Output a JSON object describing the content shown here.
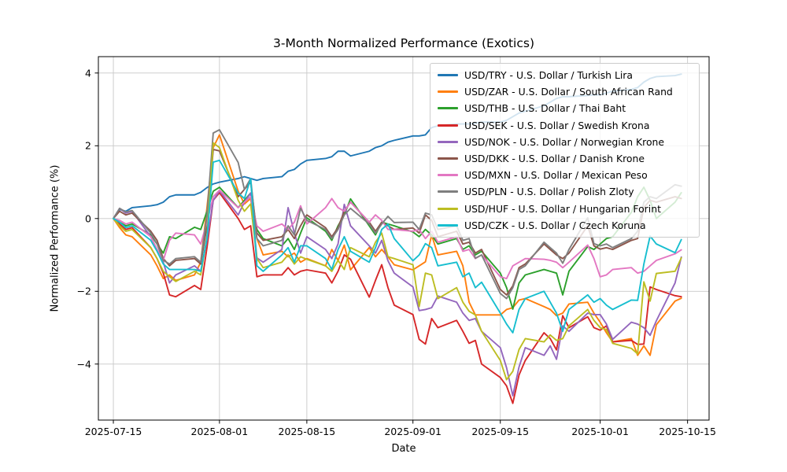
{
  "chart_data": {
    "type": "line",
    "title": "3-Month Normalized Performance (Exotics)",
    "xlabel": "Date",
    "ylabel": "Normalized Performance (%)",
    "grid": true,
    "legend_position": "upper right",
    "background_color": "#ffffff",
    "grid_color": "#c8c8c8",
    "spine_color": "#000000",
    "x_tick_labels": [
      "2025-07-15",
      "2025-08-01",
      "2025-08-15",
      "2025-09-01",
      "2025-09-15",
      "2025-10-01",
      "2025-10-15"
    ],
    "x_ticks_days": [
      0,
      17,
      31,
      48,
      62,
      78,
      92
    ],
    "y_ticks": [
      4,
      2,
      0,
      -2,
      -4
    ],
    "y_tick_labels": [
      "4",
      "2",
      "0",
      "−2",
      "−4"
    ],
    "xlim_days": [
      -2.4,
      95.45
    ],
    "ylim": [
      -5.54,
      4.45
    ],
    "dates": [
      "2025-07-15",
      "2025-07-16",
      "2025-07-17",
      "2025-07-18",
      "2025-07-21",
      "2025-07-22",
      "2025-07-23",
      "2025-07-24",
      "2025-07-25",
      "2025-07-28",
      "2025-07-29",
      "2025-07-30",
      "2025-07-31",
      "2025-08-01",
      "2025-08-04",
      "2025-08-05",
      "2025-08-06",
      "2025-08-07",
      "2025-08-08",
      "2025-08-11",
      "2025-08-12",
      "2025-08-13",
      "2025-08-14",
      "2025-08-15",
      "2025-08-18",
      "2025-08-19",
      "2025-08-20",
      "2025-08-21",
      "2025-08-22",
      "2025-08-25",
      "2025-08-26",
      "2025-08-27",
      "2025-08-28",
      "2025-08-29",
      "2025-09-01",
      "2025-09-02",
      "2025-09-03",
      "2025-09-04",
      "2025-09-05",
      "2025-09-08",
      "2025-09-09",
      "2025-09-10",
      "2025-09-11",
      "2025-09-12",
      "2025-09-15",
      "2025-09-16",
      "2025-09-17",
      "2025-09-18",
      "2025-09-19",
      "2025-09-22",
      "2025-09-23",
      "2025-09-24",
      "2025-09-25",
      "2025-09-26",
      "2025-09-29",
      "2025-09-30",
      "2025-10-01",
      "2025-10-02",
      "2025-10-03",
      "2025-10-06",
      "2025-10-07",
      "2025-10-08",
      "2025-10-09",
      "2025-10-10",
      "2025-10-13",
      "2025-10-14"
    ],
    "days": [
      0,
      1,
      2,
      3,
      6,
      7,
      8,
      9,
      10,
      13,
      14,
      15,
      16,
      17,
      20,
      21,
      22,
      23,
      24,
      27,
      28,
      29,
      30,
      31,
      34,
      35,
      36,
      37,
      38,
      41,
      42,
      43,
      44,
      45,
      48,
      49,
      50,
      51,
      52,
      55,
      56,
      57,
      58,
      59,
      62,
      63,
      64,
      65,
      66,
      69,
      70,
      71,
      72,
      73,
      76,
      77,
      78,
      79,
      80,
      83,
      84,
      85,
      86,
      87,
      90,
      91
    ],
    "series": [
      {
        "name": "USD/TRY - U.S. Dollar / Turkish Lira",
        "color": "#1f77b4",
        "values": [
          0,
          0.25,
          0.2,
          0.3,
          0.35,
          0.38,
          0.45,
          0.6,
          0.65,
          0.65,
          0.72,
          0.85,
          0.95,
          1.0,
          1.1,
          1.15,
          1.1,
          1.05,
          1.1,
          1.15,
          1.3,
          1.35,
          1.5,
          1.6,
          1.65,
          1.7,
          1.85,
          1.85,
          1.72,
          1.85,
          1.95,
          2.0,
          2.1,
          2.15,
          2.27,
          2.27,
          2.3,
          2.5,
          2.55,
          2.6,
          2.6,
          2.6,
          2.62,
          2.65,
          2.65,
          2.7,
          2.8,
          2.9,
          2.95,
          3.1,
          3.2,
          3.3,
          3.35,
          3.35,
          3.38,
          3.4,
          3.4,
          3.45,
          3.5,
          3.55,
          3.6,
          3.75,
          3.85,
          3.9,
          3.93,
          3.97
        ]
      },
      {
        "name": "USD/ZAR - U.S. Dollar / South African Rand",
        "color": "#ff7f0e",
        "values": [
          0,
          -0.25,
          -0.45,
          -0.5,
          -1.0,
          -1.3,
          -1.65,
          -1.55,
          -1.7,
          -1.55,
          -1.2,
          0.3,
          1.95,
          2.3,
          0.75,
          0.4,
          0.55,
          -0.55,
          -1.0,
          -0.9,
          -1.05,
          -0.95,
          -1.2,
          -1.1,
          -1.3,
          -0.85,
          -1.15,
          -0.73,
          -1.41,
          -0.8,
          -1.05,
          -0.85,
          -1.05,
          -1.27,
          -1.41,
          -1.3,
          -1.19,
          -0.45,
          -1.0,
          -0.9,
          -1.3,
          -2.3,
          -2.65,
          -2.65,
          -2.65,
          -2.5,
          -2.45,
          -2.24,
          -2.2,
          -2.42,
          -2.5,
          -2.67,
          -2.6,
          -2.35,
          -2.3,
          -2.6,
          -2.85,
          -3.14,
          -3.39,
          -3.3,
          -3.76,
          -3.5,
          -3.76,
          -2.92,
          -2.27,
          -2.19
        ]
      },
      {
        "name": "USD/THB - U.S. Dollar / Thai Baht",
        "color": "#2ca02c",
        "values": [
          0,
          -0.1,
          -0.2,
          -0.15,
          -0.45,
          -0.7,
          -0.95,
          -0.5,
          -0.55,
          -0.24,
          -0.3,
          0.2,
          0.75,
          0.86,
          0.3,
          0.5,
          0.7,
          -0.3,
          -0.55,
          -0.75,
          -0.55,
          -0.85,
          -0.4,
          0.02,
          -0.35,
          -0.6,
          -0.2,
          0.1,
          0.54,
          -0.2,
          -0.45,
          -0.1,
          -0.15,
          -0.2,
          -0.37,
          -0.5,
          -0.3,
          -0.45,
          -0.7,
          -0.55,
          -0.85,
          -0.75,
          -1.0,
          -0.9,
          -1.5,
          -1.9,
          -2.49,
          -1.77,
          -1.55,
          -1.4,
          -1.45,
          -1.5,
          -2.1,
          -1.45,
          -0.77,
          -0.85,
          -0.7,
          -0.55,
          -0.5,
          0.17,
          0.6,
          0.86,
          0.5,
          0.0,
          0.45,
          0.71
        ]
      },
      {
        "name": "USD/SEK - U.S. Dollar / Swedish Krona",
        "color": "#d62728",
        "values": [
          0,
          -0.15,
          -0.3,
          -0.25,
          -0.8,
          -1.1,
          -1.5,
          -2.1,
          -2.15,
          -1.84,
          -1.95,
          -0.8,
          0.5,
          0.71,
          0.0,
          -0.3,
          -0.2,
          -1.6,
          -1.55,
          -1.55,
          -1.35,
          -1.55,
          -1.45,
          -1.41,
          -1.5,
          -1.77,
          -1.45,
          -1.0,
          -1.12,
          -2.16,
          -1.7,
          -1.27,
          -1.9,
          -2.38,
          -2.64,
          -3.32,
          -3.45,
          -2.75,
          -3.0,
          -2.8,
          -3.1,
          -3.43,
          -3.35,
          -4.0,
          -4.37,
          -4.6,
          -5.08,
          -4.3,
          -3.9,
          -3.14,
          -3.3,
          -3.61,
          -2.67,
          -3.0,
          -2.7,
          -3.0,
          -3.07,
          -2.95,
          -3.39,
          -3.35,
          -3.46,
          -3.45,
          -1.88,
          -1.95,
          -2.12,
          -2.15
        ]
      },
      {
        "name": "USD/NOK - U.S. Dollar / Norwegian Krone",
        "color": "#9467bd",
        "values": [
          0,
          0.28,
          0.15,
          0.2,
          -0.5,
          -0.85,
          -1.2,
          -1.77,
          -1.55,
          -1.3,
          -1.45,
          -0.6,
          0.5,
          0.76,
          0.1,
          0.45,
          0.7,
          -1.08,
          -1.2,
          -0.85,
          0.3,
          -0.4,
          -0.95,
          -0.5,
          -0.85,
          -1.1,
          -0.7,
          0.39,
          -0.2,
          -0.75,
          -0.95,
          -0.6,
          -1.16,
          -1.5,
          -1.88,
          -2.53,
          -2.5,
          -2.45,
          -2.13,
          -2.3,
          -2.6,
          -2.8,
          -2.75,
          -3.1,
          -3.55,
          -4.1,
          -4.87,
          -4.08,
          -3.55,
          -3.76,
          -3.5,
          -3.87,
          -2.95,
          -3.1,
          -2.6,
          -2.64,
          -2.64,
          -2.9,
          -3.32,
          -2.85,
          -2.9,
          -3.0,
          -3.21,
          -2.81,
          -1.77,
          -1.06
        ]
      },
      {
        "name": "USD/DKK - U.S. Dollar / Danish Krone",
        "color": "#8c564b",
        "values": [
          0,
          0.2,
          0.1,
          0.15,
          -0.35,
          -0.6,
          -1.1,
          -1.3,
          -1.15,
          -1.1,
          -1.25,
          -0.2,
          1.9,
          1.86,
          0.6,
          0.8,
          1.0,
          -0.4,
          -0.6,
          -0.5,
          -0.3,
          -0.55,
          -0.2,
          0.1,
          -0.25,
          -0.5,
          -0.25,
          0.2,
          0.45,
          -0.1,
          -0.35,
          -0.1,
          -0.2,
          -0.3,
          -0.26,
          -0.4,
          0.1,
          -0.05,
          -0.5,
          -0.35,
          -0.7,
          -0.65,
          -0.95,
          -0.85,
          -1.95,
          -2.1,
          -1.85,
          -1.35,
          -1.25,
          -0.7,
          -0.85,
          -1.0,
          -1.1,
          -0.95,
          -0.2,
          -0.75,
          -0.84,
          -0.8,
          -0.85,
          -0.6,
          -0.55,
          0.3,
          0.5,
          0.45,
          0.6,
          0.55
        ]
      },
      {
        "name": "USD/MXN - U.S. Dollar / Mexican Peso",
        "color": "#e377c2",
        "values": [
          0,
          -0.05,
          -0.15,
          -0.1,
          -0.5,
          -0.85,
          -1.15,
          -0.6,
          -0.4,
          -0.45,
          -0.7,
          -0.1,
          0.6,
          0.78,
          0.3,
          0.45,
          0.6,
          -0.2,
          -0.35,
          -0.15,
          -0.3,
          -0.1,
          0.35,
          -0.15,
          0.3,
          0.55,
          0.3,
          0.2,
          0.45,
          -0.1,
          0.1,
          -0.05,
          -0.3,
          -0.3,
          -0.35,
          -0.3,
          -0.55,
          -0.35,
          -0.65,
          -0.5,
          -0.9,
          -0.85,
          -1.1,
          -1.0,
          -1.6,
          -1.65,
          -1.3,
          -1.2,
          -1.1,
          -1.12,
          -1.15,
          -1.2,
          -1.35,
          -1.2,
          -0.73,
          -1.1,
          -1.6,
          -1.55,
          -1.4,
          -1.35,
          -1.5,
          -1.45,
          -1.3,
          -1.15,
          -0.97,
          -0.86
        ]
      },
      {
        "name": "USD/PLN - U.S. Dollar / Polish Zloty",
        "color": "#7f7f7f",
        "values": [
          0,
          0.28,
          0.18,
          0.22,
          -0.4,
          -0.7,
          -1.15,
          -1.25,
          -1.1,
          -1.05,
          -1.2,
          0.1,
          2.35,
          2.44,
          1.54,
          0.8,
          1.1,
          -0.55,
          -0.75,
          -0.6,
          -0.2,
          -0.45,
          0.28,
          -0.05,
          -0.3,
          -0.55,
          -0.3,
          0.1,
          0.28,
          -0.15,
          -0.4,
          -0.15,
          0.06,
          -0.11,
          -0.1,
          -0.3,
          0.15,
          0.1,
          -0.3,
          -0.2,
          -0.6,
          -0.55,
          -1.09,
          -1.0,
          -2.06,
          -2.2,
          -1.9,
          -1.4,
          -1.3,
          -0.65,
          -0.8,
          -0.95,
          -1.23,
          -0.85,
          0.02,
          -0.69,
          -0.75,
          -0.7,
          -0.8,
          -0.55,
          -0.35,
          0.45,
          0.6,
          0.55,
          0.93,
          0.89
        ]
      },
      {
        "name": "USD/HUF - U.S. Dollar / Hungarian Forint",
        "color": "#bcbd22",
        "values": [
          0,
          -0.2,
          -0.35,
          -0.3,
          -0.8,
          -1.1,
          -1.45,
          -1.6,
          -1.73,
          -1.45,
          -1.55,
          -0.5,
          2.08,
          1.95,
          0.5,
          0.2,
          0.4,
          -1.1,
          -1.35,
          -1.2,
          -1.0,
          -1.25,
          -1.05,
          -1.12,
          -1.3,
          -1.45,
          -1.15,
          -1.4,
          -0.8,
          -1.05,
          -0.65,
          -0.4,
          -1.05,
          -1.1,
          -1.27,
          -2.42,
          -1.5,
          -1.55,
          -2.2,
          -1.9,
          -2.3,
          -2.55,
          -2.65,
          -3.1,
          -3.9,
          -4.43,
          -4.2,
          -3.6,
          -3.3,
          -3.39,
          -3.2,
          -3.35,
          -3.3,
          -2.95,
          -2.5,
          -2.8,
          -3.0,
          -3.05,
          -3.43,
          -3.57,
          -3.72,
          -1.74,
          -2.27,
          -1.51,
          -1.45,
          -1.08
        ]
      },
      {
        "name": "USD/CZK - U.S. Dollar / Czech Koruna",
        "color": "#17becf",
        "values": [
          0,
          -0.1,
          -0.25,
          -0.2,
          -0.6,
          -0.9,
          -1.25,
          -1.4,
          -1.4,
          -1.4,
          -1.45,
          -0.55,
          1.55,
          1.6,
          0.7,
          0.55,
          1.1,
          -1.3,
          -1.45,
          -1.0,
          -0.8,
          -1.2,
          -0.75,
          -0.75,
          -1.1,
          -1.4,
          -0.85,
          -0.5,
          -0.9,
          -1.2,
          -0.8,
          -0.3,
          -0.15,
          -0.55,
          -1.16,
          -1.0,
          -0.69,
          -0.8,
          -1.3,
          -1.2,
          -1.6,
          -1.5,
          -1.9,
          -1.75,
          -2.6,
          -2.9,
          -3.14,
          -2.5,
          -2.2,
          -2.0,
          -2.3,
          -2.6,
          -3.1,
          -2.5,
          -2.1,
          -2.3,
          -2.2,
          -2.38,
          -2.5,
          -2.24,
          -2.25,
          -1.25,
          -0.48,
          -0.7,
          -0.94,
          -0.58
        ]
      }
    ]
  }
}
